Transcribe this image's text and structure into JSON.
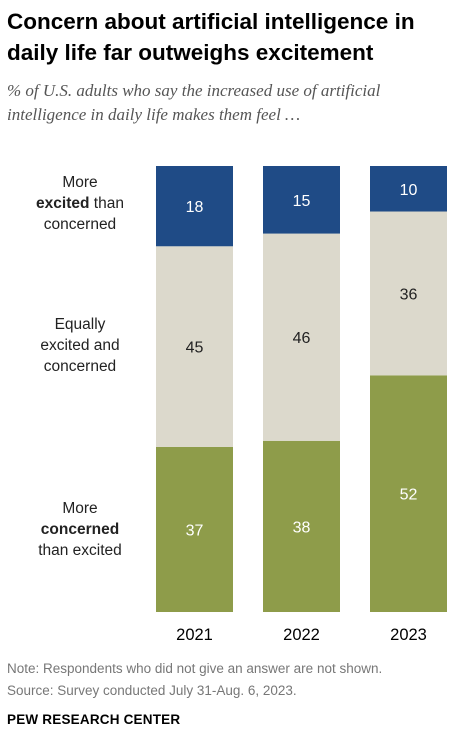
{
  "title_lines": [
    "Concern about artificial intelligence in",
    "daily life far outweighs excitement"
  ],
  "subtitle_lines": [
    "% of U.S. adults who say the increased use of artificial",
    "intelligence in daily life makes them feel …"
  ],
  "note": "Note: Respondents who did not give an answer are not shown.",
  "source": "Source: Survey conducted July 31-Aug. 6, 2023.",
  "brand": "PEW RESEARCH CENTER",
  "row_labels": [
    {
      "parts": [
        {
          "text": "More",
          "bold": false
        }
      ],
      "parts2": [
        {
          "text": "excited",
          "bold": true
        },
        {
          "text": " than",
          "bold": false
        }
      ],
      "parts3": [
        {
          "text": "concerned",
          "bold": false
        }
      ]
    },
    {
      "parts": [
        {
          "text": "Equally",
          "bold": false
        }
      ],
      "parts2": [
        {
          "text": "excited and",
          "bold": false
        }
      ],
      "parts3": [
        {
          "text": "concerned",
          "bold": false
        }
      ]
    },
    {
      "parts": [
        {
          "text": "More",
          "bold": false
        }
      ],
      "parts2": [
        {
          "text": "concerned",
          "bold": true
        }
      ],
      "parts3": [
        {
          "text": "than excited",
          "bold": false
        }
      ]
    }
  ],
  "chart_data": {
    "type": "bar",
    "stacked": true,
    "orientation": "vertical",
    "categories": [
      "2021",
      "2022",
      "2023"
    ],
    "series": [
      {
        "name": "More excited than concerned",
        "values": [
          18,
          15,
          10
        ],
        "color": "#1f4b86",
        "label_color": "#ffffff"
      },
      {
        "name": "Equally excited and concerned",
        "values": [
          45,
          46,
          36
        ],
        "color": "#dcd9cc",
        "label_color": "#222222"
      },
      {
        "name": "More concerned than excited",
        "values": [
          37,
          38,
          52
        ],
        "color": "#8e9c4a",
        "label_color": "#ffffff"
      }
    ],
    "ylim": [
      0,
      100
    ],
    "grid": false,
    "legend": "left row labels"
  }
}
